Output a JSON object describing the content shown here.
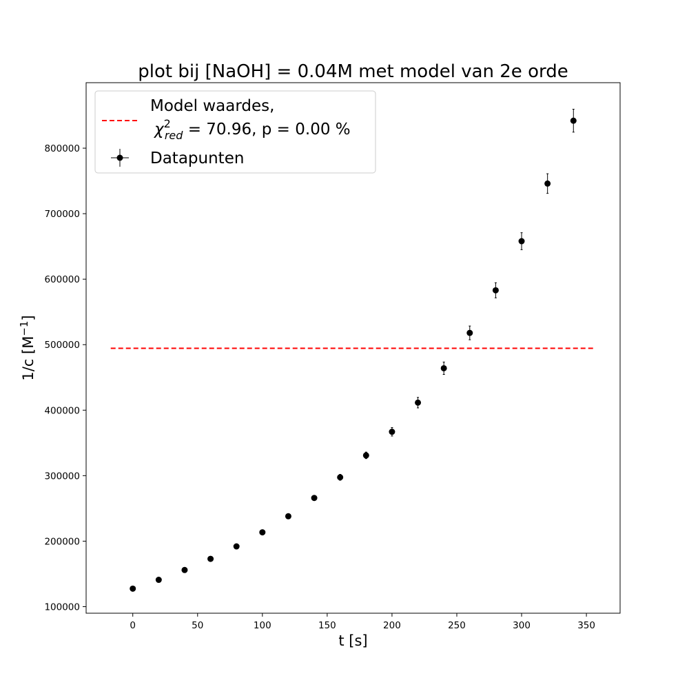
{
  "chart_data": {
    "type": "scatter",
    "title": "plot bij [NaOH] = 0.04M met model van 2e orde",
    "xlabel": "t [s]",
    "ylabel_base": "1/c [M",
    "ylabel_sup": "−1",
    "ylabel_end": "]",
    "xlim": [
      -36,
      376
    ],
    "ylim": [
      90000,
      900000
    ],
    "xticks": [
      0,
      50,
      100,
      150,
      200,
      250,
      300,
      350
    ],
    "yticks": [
      100000,
      200000,
      300000,
      400000,
      500000,
      600000,
      700000,
      800000
    ],
    "grid": false,
    "legend_position": "upper-left",
    "legend": {
      "model_line1": "Model waardes,",
      "model_chi": "χ",
      "model_chi_sup": "2",
      "model_chi_sub": "red",
      "model_stats": " = 70.96, p = 0.00 %",
      "data_label": "Datapunten"
    },
    "colors": {
      "model": "#ff0000",
      "data": "#000000"
    },
    "model": {
      "style": "dashed",
      "x": [
        -17,
        356
      ],
      "y": [
        494500,
        494500
      ]
    },
    "data": {
      "x": [
        0,
        20,
        40,
        60,
        80,
        100,
        120,
        140,
        160,
        180,
        200,
        220,
        240,
        260,
        280,
        300,
        320,
        340
      ],
      "y": [
        127500,
        141000,
        156000,
        173000,
        192000,
        213500,
        238000,
        266000,
        297500,
        331000,
        367000,
        411500,
        464000,
        518000,
        583000,
        658000,
        746000,
        842000
      ],
      "yerr": [
        0,
        0,
        0,
        0,
        0,
        0,
        3000,
        3500,
        4500,
        5000,
        6500,
        8000,
        9500,
        10500,
        11500,
        13000,
        15000,
        17500
      ]
    }
  }
}
